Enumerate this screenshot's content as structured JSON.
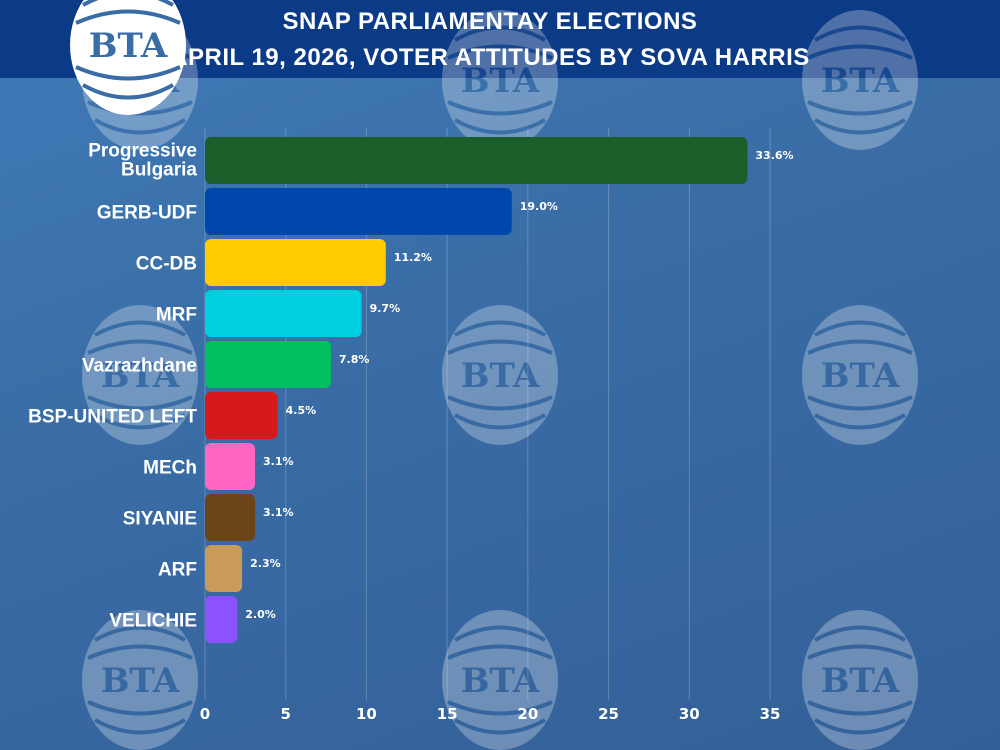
{
  "header": {
    "title_line1": "SNAP PARLIAMENTAY ELECTIONS",
    "title_line2": "APRIL 19, 2026, VOTER ATTITUDES BY SOVA HARRIS",
    "logo_text": "BTA"
  },
  "colors": {
    "header_bg": "#0b3a86",
    "text": "#ffffff"
  },
  "chart_data": {
    "type": "bar",
    "orientation": "horizontal",
    "title": "SNAP PARLIAMENTAY ELECTIONS APRIL 19, 2026, VOTER ATTITUDES BY SOVA HARRIS",
    "xlabel": "",
    "ylabel": "",
    "xlim": [
      0,
      35
    ],
    "xticks": [
      0,
      5,
      10,
      15,
      20,
      25,
      30,
      35
    ],
    "grid": true,
    "legend": "none",
    "categories": [
      "Progressive Bulgaria",
      "GERB-UDF",
      "CC-DB",
      "MRF",
      "Vazrazhdane",
      "BSP-UNITED LEFT",
      "MECh",
      "SIYANIE",
      "ARF",
      "VELICHIE"
    ],
    "values": [
      33.6,
      19.0,
      11.2,
      9.7,
      7.8,
      4.5,
      3.1,
      3.1,
      2.3,
      2.0
    ],
    "data_labels": [
      "33.6%",
      "19.0%",
      "11.2%",
      "9.7%",
      "7.8%",
      "4.5%",
      "3.1%",
      "3.1%",
      "2.3%",
      "2.0%"
    ],
    "bar_colors": [
      "#1b5e2a",
      "#0047ab",
      "#ffcc00",
      "#00cfdf",
      "#00c060",
      "#d7191c",
      "#ff66c4",
      "#6b4518",
      "#c99a5a",
      "#8c52ff"
    ]
  }
}
